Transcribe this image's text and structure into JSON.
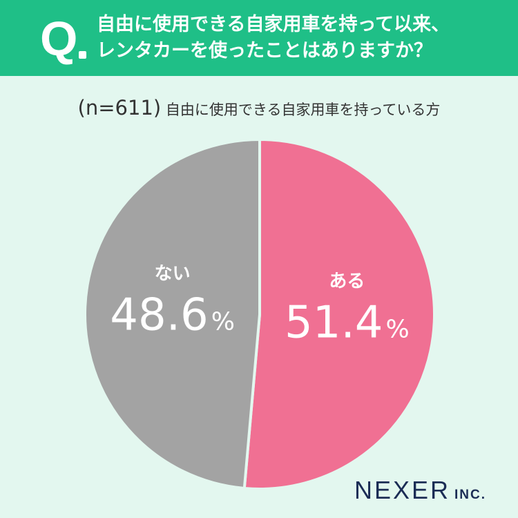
{
  "header": {
    "q_mark": "Q",
    "question": "自由に使用できる自家用車を持って以来、\nレンタカーを使ったことはありますか？"
  },
  "subtitle": {
    "n": "(n=611)",
    "text": "自由に使用できる自家用車を持っている方"
  },
  "colors": {
    "header": "#1fbf87",
    "background": "#e3f7ef",
    "yes": "#f07093",
    "no": "#a3a3a3",
    "logo": "#1b2c55"
  },
  "chart_data": {
    "type": "pie",
    "categories": [
      "ある",
      "ない"
    ],
    "values": [
      51.4,
      48.6
    ],
    "unit": "%"
  },
  "logo": {
    "name": "NEXER",
    "suffix": "INC."
  }
}
